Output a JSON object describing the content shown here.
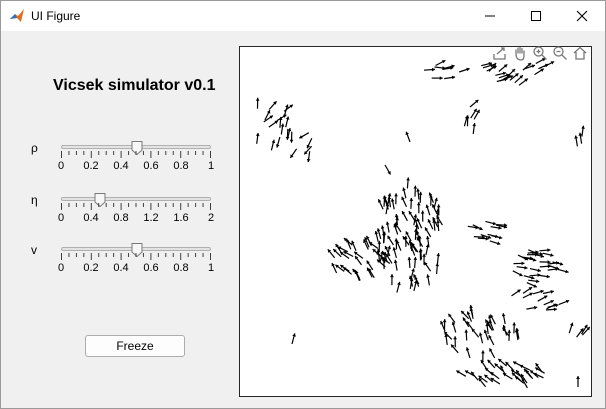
{
  "window": {
    "title": "UI Figure"
  },
  "app": {
    "title": "Vicsek simulator v0.1"
  },
  "sliders": [
    {
      "symbol": "ρ",
      "ticks": [
        "0",
        "0.2",
        "0.4",
        "0.6",
        "0.8",
        "1"
      ],
      "min": 0,
      "max": 1,
      "value": 0.5,
      "minor_ticks": 21
    },
    {
      "symbol": "η",
      "ticks": [
        "0",
        "0.4",
        "0.8",
        "1.2",
        "1.6",
        "2"
      ],
      "min": 0,
      "max": 2,
      "value": 0.5,
      "minor_ticks": 21
    },
    {
      "symbol": "v",
      "ticks": [
        "0",
        "0.2",
        "0.4",
        "0.6",
        "0.8",
        "1"
      ],
      "min": 0,
      "max": 1,
      "value": 0.5,
      "minor_ticks": 21
    }
  ],
  "buttons": {
    "freeze": "Freeze"
  },
  "axes_toolbar": [
    "export-icon",
    "pan-hand-icon",
    "zoom-in-icon",
    "zoom-out-icon",
    "home-icon"
  ],
  "colors": {
    "arrow": "#000000",
    "background": "#f0f0f0",
    "axes_bg": "#ffffff"
  }
}
